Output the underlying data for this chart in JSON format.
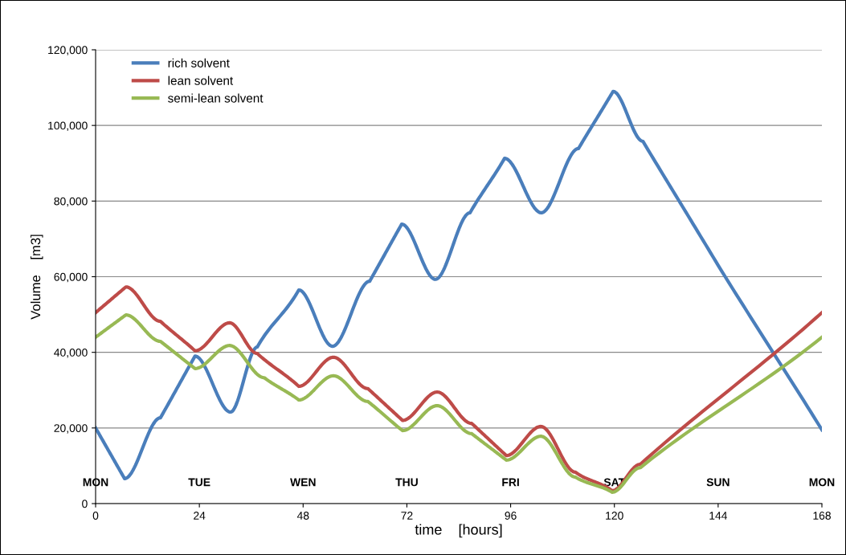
{
  "chart_data": {
    "type": "line",
    "xlabel": "time    [hours]",
    "ylabel": "Volume    [m3]",
    "xlim": [
      0,
      168
    ],
    "xticks": [
      0,
      24,
      48,
      72,
      96,
      120,
      144,
      168
    ],
    "ylim": [
      0,
      120000
    ],
    "yticks": [
      {
        "value": 0,
        "label": "0"
      },
      {
        "value": 20000,
        "label": "20,000"
      },
      {
        "value": 40000,
        "label": "40,000"
      },
      {
        "value": 60000,
        "label": "60,000"
      },
      {
        "value": 80000,
        "label": "80,000"
      },
      {
        "value": 100000,
        "label": "100,000"
      },
      {
        "value": 120000,
        "label": "120,000"
      }
    ],
    "grid": "y",
    "legend": "top left",
    "marker": "none",
    "line_style": "solid",
    "series": [
      {
        "name": "rich solvent",
        "color": "#4a7ebb",
        "x": [
          0,
          6.7,
          15,
          23,
          31.2,
          37.4,
          47,
          54.8,
          63.4,
          70.8,
          78.6,
          86.6,
          94.6,
          103.1,
          111.7,
          119.7,
          126.6,
          144,
          168
        ],
        "values": [
          20000,
          6600,
          22700,
          39000,
          24200,
          41400,
          56500,
          41600,
          58800,
          73900,
          59300,
          76900,
          91300,
          76900,
          93900,
          109000,
          95800,
          63000,
          19500
        ]
      },
      {
        "name": "lean solvent",
        "color": "#be4b48",
        "x": [
          0,
          7,
          15,
          23,
          31,
          37.4,
          47,
          55,
          63,
          71,
          79,
          87,
          95,
          103,
          111,
          119.5,
          126,
          168
        ],
        "values": [
          50500,
          57300,
          48200,
          40400,
          47800,
          39700,
          31000,
          38700,
          30400,
          22000,
          29500,
          21200,
          12700,
          20400,
          8300,
          3400,
          10400,
          50500
        ]
      },
      {
        "name": "semi-lean solvent",
        "color": "#98b954",
        "x": [
          0,
          7,
          15,
          23,
          31,
          39,
          47,
          55,
          63,
          71,
          79,
          87,
          95,
          103,
          111,
          119.5,
          126,
          168
        ],
        "values": [
          44000,
          49900,
          42900,
          35700,
          41800,
          33300,
          27400,
          33800,
          27000,
          19300,
          25900,
          18500,
          11500,
          17800,
          7000,
          3000,
          9500,
          44000
        ]
      }
    ],
    "annotations": [
      "MON",
      "TUE",
      "WEN",
      "THU",
      "FRI",
      "SAT",
      "SUN",
      "MON"
    ]
  }
}
